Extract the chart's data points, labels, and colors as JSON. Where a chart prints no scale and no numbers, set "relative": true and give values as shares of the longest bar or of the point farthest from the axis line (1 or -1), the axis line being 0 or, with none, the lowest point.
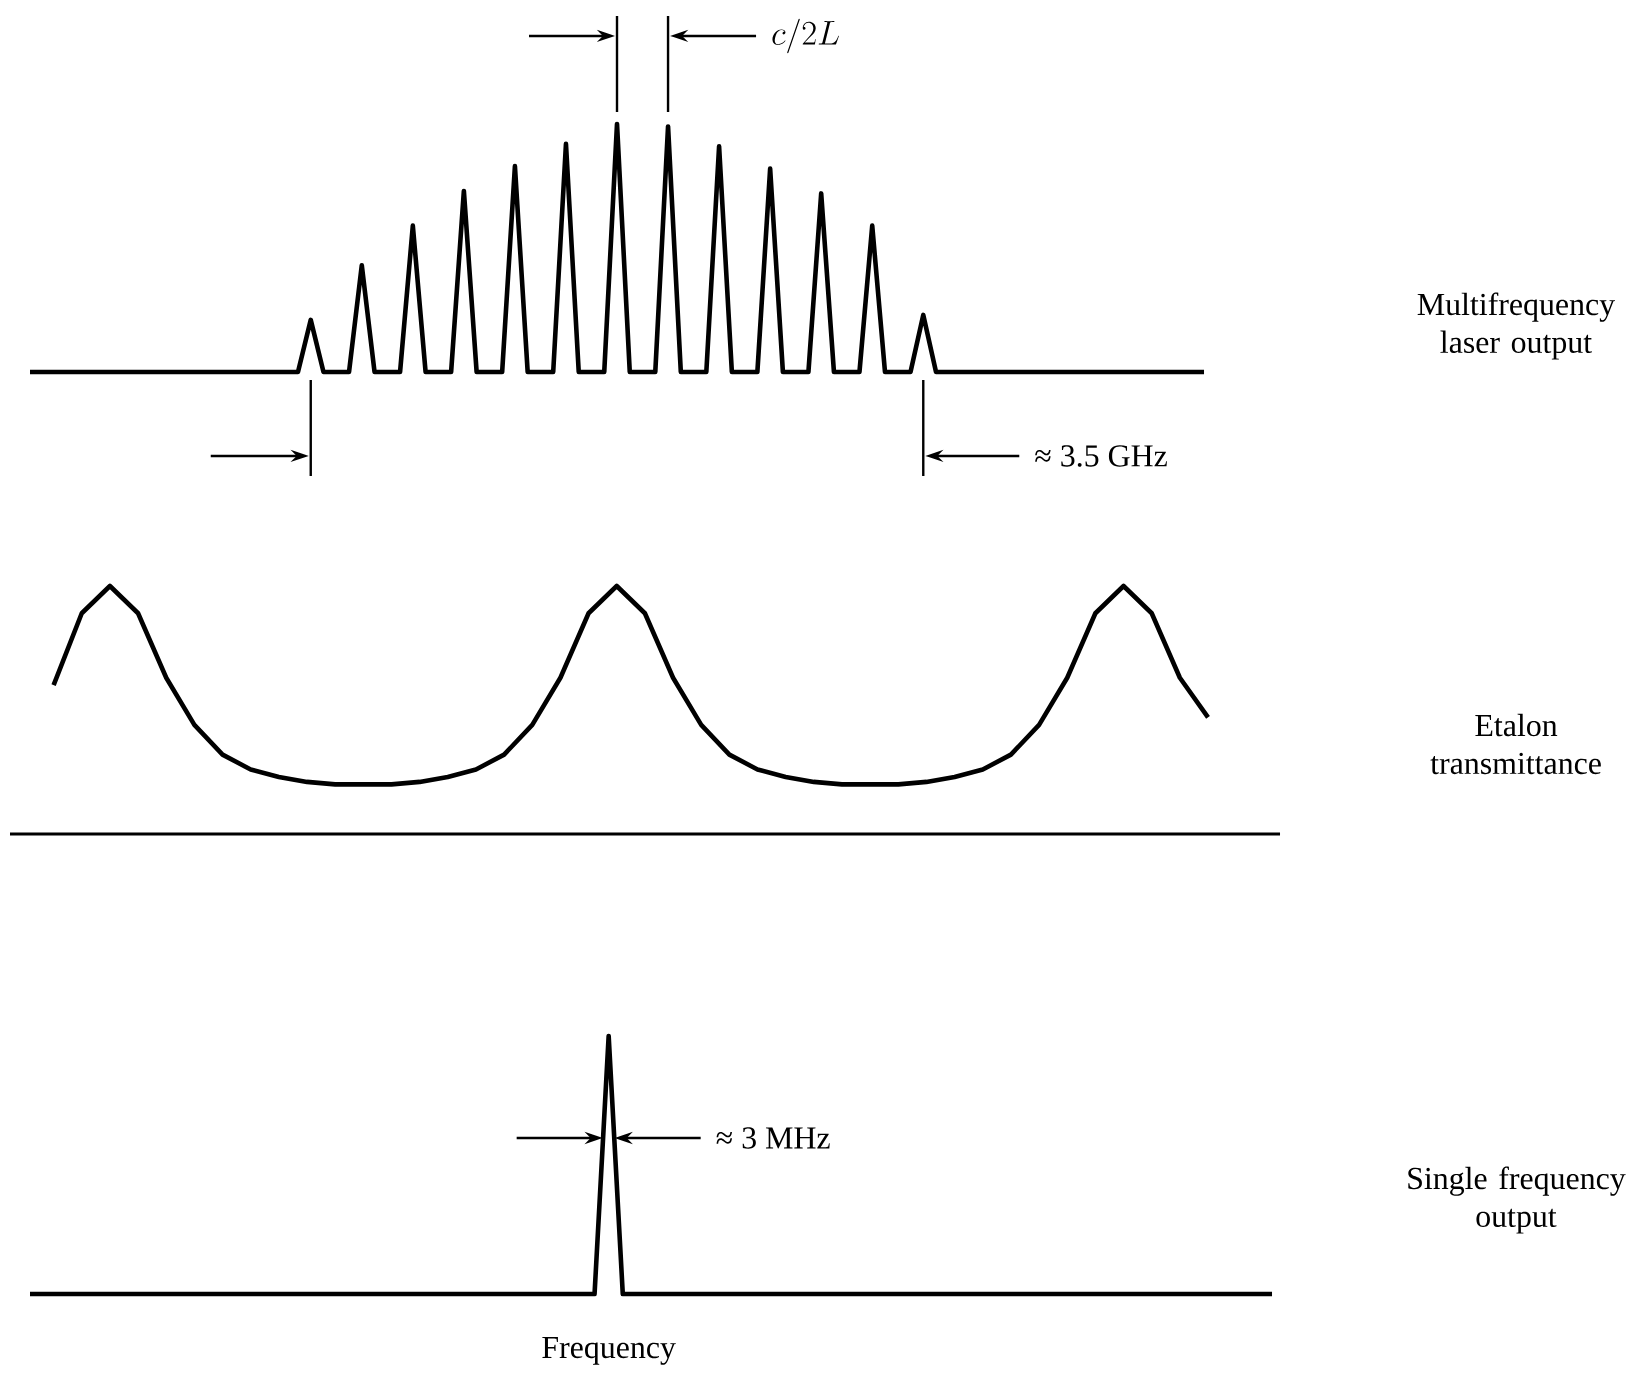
{
  "chart_data": [
    {
      "type": "line",
      "relative": true,
      "ylabel": "Multifrequency laser output",
      "color": "#000000",
      "categories": [
        null,
        null,
        null,
        null,
        null,
        null,
        null,
        null,
        null,
        null,
        null,
        null,
        null,
        null,
        null,
        null,
        null,
        null,
        null,
        null,
        null,
        null,
        null,
        null,
        null,
        null,
        null,
        null,
        null,
        null,
        null,
        null,
        null,
        null,
        null,
        null,
        null,
        null,
        null,
        null,
        null,
        null,
        null,
        null,
        null,
        null,
        null,
        null,
        null,
        null,
        null,
        null,
        null,
        null,
        null,
        null,
        null,
        null,
        null,
        null,
        null,
        null,
        null,
        null,
        null,
        null,
        null,
        null,
        null,
        null,
        null,
        null,
        null,
        null,
        null,
        null,
        null,
        null,
        null,
        null,
        null,
        null,
        null,
        null,
        null,
        null,
        null,
        null,
        null,
        null,
        null,
        null,
        null
      ],
      "values": [
        0,
        0,
        0,
        0,
        0,
        0,
        0,
        0,
        0,
        0,
        0,
        0,
        0,
        0,
        0,
        0,
        0,
        0,
        0,
        0,
        0,
        0,
        0.21,
        0,
        0,
        0,
        0.43,
        0,
        0,
        0,
        0.59,
        0,
        0,
        0,
        0.73,
        0,
        0,
        0,
        0.83,
        0,
        0,
        0,
        0.92,
        0,
        0,
        0,
        1,
        0,
        0,
        0,
        0.99,
        0,
        0,
        0,
        0.91,
        0,
        0,
        0,
        0.82,
        0,
        0,
        0,
        0.72,
        0,
        0,
        0,
        0.59,
        0,
        0,
        0,
        0.23,
        0,
        0,
        0,
        0,
        0,
        0,
        0,
        0,
        0,
        0,
        0,
        0,
        0,
        0,
        0,
        0,
        0,
        0,
        0,
        0,
        0,
        0
      ],
      "annotations": [
        "c/2L",
        "≈ 3.5 GHz"
      ]
    },
    {
      "type": "line",
      "relative": true,
      "ylabel": "Etalon transmittance",
      "color": "#000000",
      "categories": [
        null,
        null,
        null,
        null,
        null,
        null,
        null,
        null,
        null,
        null,
        null,
        null,
        null,
        null,
        null,
        null,
        null,
        null,
        null,
        null,
        null,
        null,
        null,
        null,
        null,
        null,
        null,
        null,
        null,
        null,
        null,
        null,
        null,
        null,
        null,
        null,
        null,
        null,
        null,
        null,
        null,
        null
      ],
      "values": [
        0.6,
        0.89,
        1,
        0.89,
        0.63,
        0.44,
        0.32,
        0.26,
        0.23,
        0.21,
        0.2,
        0.2,
        0.2,
        0.21,
        0.23,
        0.26,
        0.32,
        0.44,
        0.63,
        0.89,
        1,
        0.89,
        0.63,
        0.44,
        0.32,
        0.26,
        0.23,
        0.21,
        0.2,
        0.2,
        0.2,
        0.21,
        0.23,
        0.26,
        0.32,
        0.44,
        0.63,
        0.89,
        1,
        0.89,
        0.63,
        0.47
      ]
    },
    {
      "type": "line",
      "relative": true,
      "ylabel": "Single frequency output",
      "xlabel": "Frequency",
      "color": "#000000",
      "categories": [
        null,
        null,
        null,
        null,
        null,
        null,
        null,
        null,
        null,
        null,
        null,
        null,
        null,
        null,
        null,
        null,
        null,
        null,
        null,
        null,
        null,
        null,
        null,
        null,
        null,
        null,
        null,
        null,
        null,
        null,
        null,
        null,
        null,
        null,
        null,
        null,
        null,
        null,
        null,
        null,
        null,
        null,
        null,
        null,
        null,
        null,
        null,
        null,
        null,
        null,
        null,
        null,
        null,
        null,
        null,
        null,
        null,
        null,
        null,
        null,
        null,
        null,
        null,
        null,
        null,
        null,
        null,
        null,
        null,
        null,
        null,
        null,
        null,
        null,
        null,
        null,
        null,
        null,
        null,
        null,
        null,
        null,
        null,
        null,
        null,
        null,
        null,
        null,
        null
      ],
      "values": [
        0,
        0,
        0,
        0,
        0,
        0,
        0,
        0,
        0,
        0,
        0,
        0,
        0,
        0,
        0,
        0,
        0,
        0,
        0,
        0,
        0,
        0,
        0,
        0,
        0,
        0,
        0,
        0,
        0,
        0,
        0,
        0,
        0,
        0,
        0,
        0,
        0,
        0,
        0,
        0,
        0,
        1,
        0,
        0,
        0,
        0,
        0,
        0,
        0,
        0,
        0,
        0,
        0,
        0,
        0,
        0,
        0,
        0,
        0,
        0,
        0,
        0,
        0,
        0,
        0,
        0,
        0,
        0,
        0,
        0,
        0,
        0,
        0,
        0,
        0,
        0,
        0,
        0,
        0,
        0,
        0,
        0,
        0,
        0,
        0,
        0,
        0,
        0,
        0
      ],
      "annotations": [
        "≈ 3 MHz"
      ]
    }
  ]
}
